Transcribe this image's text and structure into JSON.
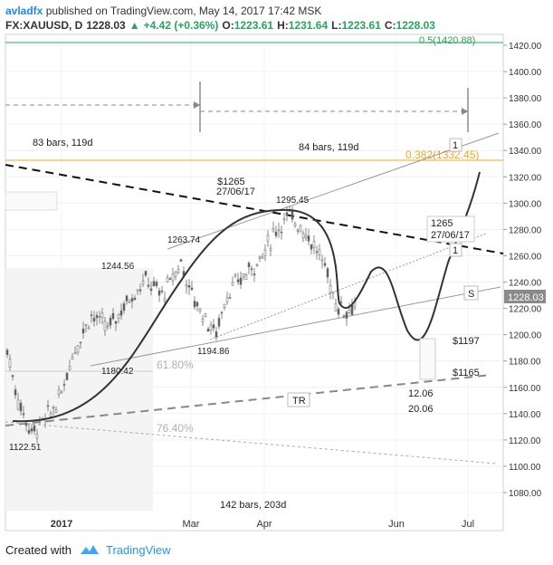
{
  "header": {
    "user": "avladfx",
    "published_text": "published on TradingView.com, May 14, 2017 17:42 MSK",
    "symbol": "FX:XAUUSD, D",
    "last": "1228.03",
    "change": "+4.42 (+0.36%)",
    "o_label": "O:",
    "o_value": "1223.61",
    "h_label": "H:",
    "h_value": "1231.64",
    "l_label": "L:",
    "l_value": "1223.61",
    "c_label": "C:",
    "c_value": "1228.03"
  },
  "footer": {
    "created_with": "Created with",
    "brand": "TradingView"
  },
  "colors": {
    "up": "#26a65b",
    "fib": "#f5a623",
    "last_price_badge": "#8a8a8a",
    "grid": "#eeeeee"
  },
  "chart_data": {
    "type": "candlestick",
    "ylim": [
      1070,
      1430
    ],
    "y_ticks": [
      "1080.00",
      "1100.00",
      "1120.00",
      "1140.00",
      "1160.00",
      "1180.00",
      "1200.00",
      "1220.00",
      "1240.00",
      "1260.00",
      "1280.00",
      "1300.00",
      "1320.00",
      "1340.00",
      "1360.00",
      "1380.00",
      "1400.00",
      "1420.00"
    ],
    "x_ticks": [
      "2017",
      "Mar",
      "Apr",
      "Jun",
      "Jul"
    ],
    "last_price_label": "1228.03",
    "annotations": {
      "fib_0": "0.5(1420.88)",
      "fib_382": "0.382(1332.45)",
      "fib_618": "61.80%",
      "fib_764": "76.40%",
      "bars_83": "83 bars, 119d",
      "bars_84": "84 bars, 119d",
      "bars_142": "142 bars, 203d",
      "p1265_a": "$1265",
      "p1265_a_date": "27/06/17",
      "p1265_b": "1265",
      "p1265_b_date": "27/06/17",
      "p1295": "1295.45",
      "p1263": "1263.74",
      "p1244": "1244.56",
      "p1194": "1194.86",
      "p1180": "1180.42",
      "p1122": "1122.51",
      "p1197": "$1197",
      "p1165": "$1165",
      "d1206": "12.06",
      "d2006": "20.06",
      "tr": "TR",
      "s": "S",
      "one_a": "1",
      "one_b": "1"
    },
    "pivots": [
      {
        "label": "1122.51",
        "y": 1122.51
      },
      {
        "label": "1180.42",
        "y": 1180.42
      },
      {
        "label": "1244.56",
        "y": 1244.56
      },
      {
        "label": "1263.74",
        "y": 1263.74
      },
      {
        "label": "1194.86",
        "y": 1194.86
      },
      {
        "label": "1295.45",
        "y": 1295.45
      }
    ]
  }
}
